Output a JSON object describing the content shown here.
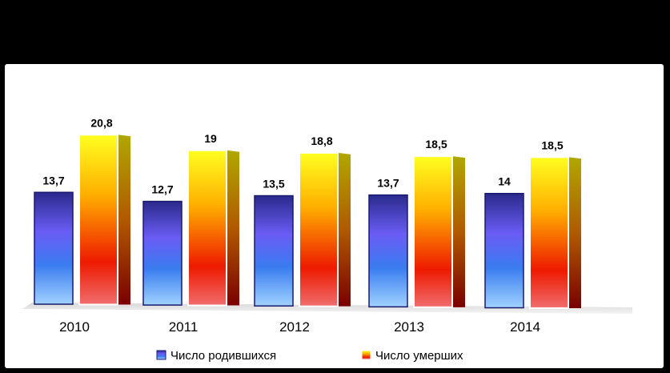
{
  "chart_data": {
    "type": "bar",
    "title": "",
    "xlabel": "",
    "ylabel": "",
    "categories": [
      "2010",
      "2011",
      "2012",
      "2013",
      "2014"
    ],
    "series": [
      {
        "name": "Число родившихся",
        "values": [
          13.7,
          12.7,
          13.5,
          13.7,
          14
        ],
        "labels": [
          "13,7",
          "12,7",
          "13,5",
          "13,7",
          "14"
        ],
        "color": "#4a4ae0"
      },
      {
        "name": "Число умерших",
        "values": [
          20.8,
          19,
          18.8,
          18.5,
          18.5
        ],
        "labels": [
          "20,8",
          "19",
          "18,8",
          "18,5",
          "18,5"
        ],
        "color": "#ff8c00"
      }
    ],
    "ylim": [
      0,
      22
    ],
    "grid": false,
    "legend": "bottom"
  }
}
